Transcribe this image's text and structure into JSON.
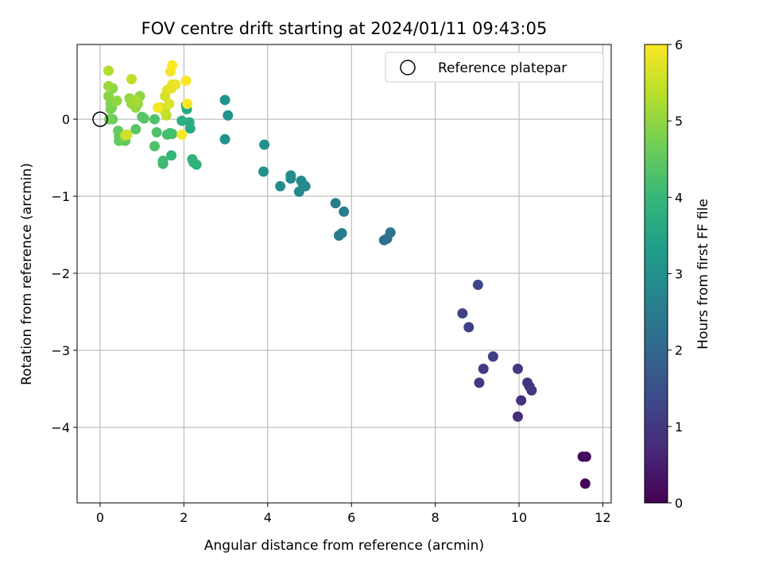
{
  "chart_data": {
    "type": "scatter",
    "title": "FOV centre drift starting at 2024/01/11 09:43:05",
    "xlabel": "Angular distance from reference (arcmin)",
    "ylabel": "Rotation from reference (arcmin)",
    "xlim": [
      -0.55,
      12.2
    ],
    "ylim": [
      -4.98,
      0.97
    ],
    "xticks": [
      0,
      2,
      4,
      6,
      8,
      10,
      12
    ],
    "yticks": [
      0,
      -1,
      -2,
      -3,
      -4
    ],
    "grid": true,
    "legend": {
      "position": "top-right",
      "entries": [
        "Reference platepar"
      ]
    },
    "reference_point": {
      "x": 0,
      "y": 0
    },
    "colorbar": {
      "label": "Hours from first FF file",
      "range": [
        0,
        6
      ],
      "ticks": [
        0,
        1,
        2,
        3,
        4,
        5,
        6
      ],
      "colormap": "viridis",
      "stops": [
        "#440154",
        "#482878",
        "#3e4989",
        "#31688e",
        "#26828e",
        "#1f9e89",
        "#35b779",
        "#6ece58",
        "#b5de2b",
        "#fde725"
      ]
    },
    "points": [
      {
        "x": 11.58,
        "y": -4.73,
        "t": 0.05
      },
      {
        "x": 11.52,
        "y": -4.38,
        "t": 0.15
      },
      {
        "x": 11.6,
        "y": -4.38,
        "t": 0.2
      },
      {
        "x": 9.97,
        "y": -3.86,
        "t": 0.8
      },
      {
        "x": 10.05,
        "y": -3.65,
        "t": 0.85
      },
      {
        "x": 10.3,
        "y": -3.52,
        "t": 0.9
      },
      {
        "x": 10.2,
        "y": -3.42,
        "t": 0.9
      },
      {
        "x": 10.25,
        "y": -3.47,
        "t": 0.9
      },
      {
        "x": 9.97,
        "y": -3.24,
        "t": 0.95
      },
      {
        "x": 9.05,
        "y": -3.42,
        "t": 1.0
      },
      {
        "x": 9.15,
        "y": -3.24,
        "t": 1.05
      },
      {
        "x": 9.38,
        "y": -3.08,
        "t": 1.1
      },
      {
        "x": 8.8,
        "y": -2.7,
        "t": 1.2
      },
      {
        "x": 8.65,
        "y": -2.52,
        "t": 1.2
      },
      {
        "x": 9.02,
        "y": -2.15,
        "t": 1.3
      },
      {
        "x": 6.78,
        "y": -1.57,
        "t": 2.2
      },
      {
        "x": 6.85,
        "y": -1.55,
        "t": 2.2
      },
      {
        "x": 6.93,
        "y": -1.47,
        "t": 2.3
      },
      {
        "x": 5.7,
        "y": -1.51,
        "t": 2.5
      },
      {
        "x": 5.77,
        "y": -1.48,
        "t": 2.5
      },
      {
        "x": 5.82,
        "y": -1.2,
        "t": 2.55
      },
      {
        "x": 5.62,
        "y": -1.09,
        "t": 2.6
      },
      {
        "x": 4.75,
        "y": -0.94,
        "t": 2.8
      },
      {
        "x": 4.85,
        "y": -0.85,
        "t": 2.85
      },
      {
        "x": 4.8,
        "y": -0.8,
        "t": 2.85
      },
      {
        "x": 4.9,
        "y": -0.87,
        "t": 2.85
      },
      {
        "x": 4.55,
        "y": -0.77,
        "t": 2.9
      },
      {
        "x": 4.55,
        "y": -0.73,
        "t": 2.9
      },
      {
        "x": 4.3,
        "y": -0.87,
        "t": 2.9
      },
      {
        "x": 3.9,
        "y": -0.68,
        "t": 3.0
      },
      {
        "x": 3.92,
        "y": -0.33,
        "t": 3.0
      },
      {
        "x": 2.98,
        "y": -0.26,
        "t": 3.1
      },
      {
        "x": 3.05,
        "y": 0.05,
        "t": 3.1
      },
      {
        "x": 2.98,
        "y": 0.25,
        "t": 3.1
      },
      {
        "x": 2.05,
        "y": 0.18,
        "t": 3.5
      },
      {
        "x": 2.07,
        "y": 0.13,
        "t": 3.6
      },
      {
        "x": 2.15,
        "y": -0.12,
        "t": 3.6
      },
      {
        "x": 2.13,
        "y": -0.04,
        "t": 3.7
      },
      {
        "x": 1.95,
        "y": -0.02,
        "t": 3.8
      },
      {
        "x": 2.2,
        "y": -0.52,
        "t": 3.9
      },
      {
        "x": 2.3,
        "y": -0.59,
        "t": 3.9
      },
      {
        "x": 2.23,
        "y": -0.56,
        "t": 3.9
      },
      {
        "x": 1.7,
        "y": -0.47,
        "t": 4.0
      },
      {
        "x": 1.5,
        "y": -0.54,
        "t": 4.1
      },
      {
        "x": 1.5,
        "y": -0.58,
        "t": 4.1
      },
      {
        "x": 1.6,
        "y": -0.2,
        "t": 4.2
      },
      {
        "x": 1.67,
        "y": -0.18,
        "t": 4.2
      },
      {
        "x": 1.72,
        "y": -0.19,
        "t": 4.2
      },
      {
        "x": 1.35,
        "y": -0.17,
        "t": 4.3
      },
      {
        "x": 1.3,
        "y": -0.35,
        "t": 4.3
      },
      {
        "x": 1.3,
        "y": 0.0,
        "t": 4.3
      },
      {
        "x": 1.05,
        "y": 0.01,
        "t": 4.4
      },
      {
        "x": 1.0,
        "y": 0.03,
        "t": 4.4
      },
      {
        "x": 0.85,
        "y": -0.13,
        "t": 4.4
      },
      {
        "x": 0.6,
        "y": -0.28,
        "t": 4.5
      },
      {
        "x": 0.6,
        "y": -0.26,
        "t": 4.5
      },
      {
        "x": 0.45,
        "y": -0.28,
        "t": 4.55
      },
      {
        "x": 0.45,
        "y": -0.22,
        "t": 4.55
      },
      {
        "x": 0.43,
        "y": -0.15,
        "t": 4.55
      },
      {
        "x": 0.55,
        "y": -0.24,
        "t": 4.6
      },
      {
        "x": 0.3,
        "y": 0.0,
        "t": 4.6
      },
      {
        "x": 0.22,
        "y": 0.0,
        "t": 4.7
      },
      {
        "x": 0.25,
        "y": 0.13,
        "t": 4.75
      },
      {
        "x": 0.28,
        "y": 0.15,
        "t": 4.75
      },
      {
        "x": 0.25,
        "y": 0.2,
        "t": 4.8
      },
      {
        "x": 0.3,
        "y": 0.22,
        "t": 4.85
      },
      {
        "x": 0.2,
        "y": 0.3,
        "t": 4.9
      },
      {
        "x": 0.3,
        "y": 0.4,
        "t": 4.9
      },
      {
        "x": 0.2,
        "y": 0.43,
        "t": 5.1
      },
      {
        "x": 0.4,
        "y": 0.24,
        "t": 5.0
      },
      {
        "x": 0.95,
        "y": 0.3,
        "t": 4.95
      },
      {
        "x": 0.7,
        "y": 0.27,
        "t": 5.0
      },
      {
        "x": 0.85,
        "y": 0.15,
        "t": 5.0
      },
      {
        "x": 0.9,
        "y": 0.2,
        "t": 5.05
      },
      {
        "x": 0.75,
        "y": 0.2,
        "t": 5.1
      },
      {
        "x": 0.85,
        "y": 0.25,
        "t": 5.2
      },
      {
        "x": 0.2,
        "y": 0.63,
        "t": 5.3
      },
      {
        "x": 0.75,
        "y": 0.52,
        "t": 5.4
      },
      {
        "x": 0.6,
        "y": -0.21,
        "t": 5.5
      },
      {
        "x": 0.65,
        "y": -0.2,
        "t": 5.55
      },
      {
        "x": 1.58,
        "y": 0.05,
        "t": 5.4
      },
      {
        "x": 1.55,
        "y": 0.1,
        "t": 5.5
      },
      {
        "x": 1.45,
        "y": 0.15,
        "t": 5.6
      },
      {
        "x": 1.65,
        "y": 0.2,
        "t": 5.7
      },
      {
        "x": 1.55,
        "y": 0.3,
        "t": 5.6
      },
      {
        "x": 1.6,
        "y": 0.38,
        "t": 5.7
      },
      {
        "x": 1.7,
        "y": 0.4,
        "t": 5.8
      },
      {
        "x": 1.72,
        "y": 0.45,
        "t": 5.8
      },
      {
        "x": 1.8,
        "y": 0.45,
        "t": 5.85
      },
      {
        "x": 1.68,
        "y": 0.62,
        "t": 5.9
      },
      {
        "x": 1.72,
        "y": 0.7,
        "t": 6.0
      },
      {
        "x": 1.38,
        "y": 0.15,
        "t": 5.95
      },
      {
        "x": 2.05,
        "y": 0.5,
        "t": 5.95
      },
      {
        "x": 2.08,
        "y": 0.2,
        "t": 6.0
      },
      {
        "x": 1.95,
        "y": -0.2,
        "t": 6.0
      }
    ]
  }
}
